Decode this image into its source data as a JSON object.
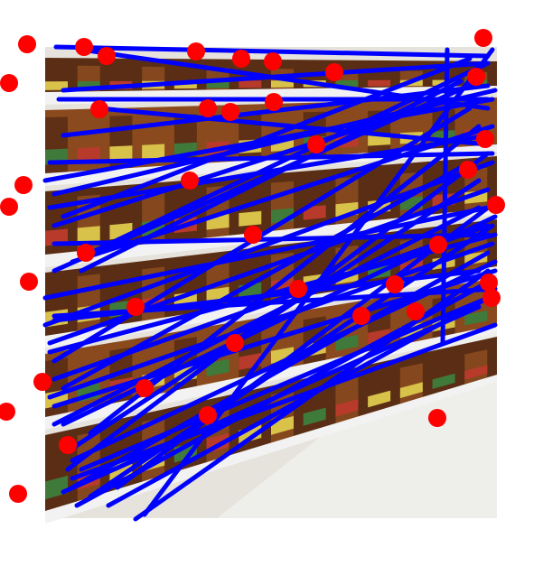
{
  "image": {
    "subject": "grocery-aisle-shelf-with-bottles",
    "background_color": "#ffffff",
    "overlay_line_color": "#0000ff",
    "overlay_point_color": "#ff0000",
    "shelf_colors": {
      "wall": "#e6e2dc",
      "shelf_edge": "#f2f2f2",
      "bottle_dark": "#5a2e14",
      "bottle_mid": "#8a4a1e",
      "label_yellow": "#d8c24a",
      "label_red": "#b83a2a",
      "label_green": "#3f7a3a",
      "floor": "#eeeeea"
    }
  }
}
